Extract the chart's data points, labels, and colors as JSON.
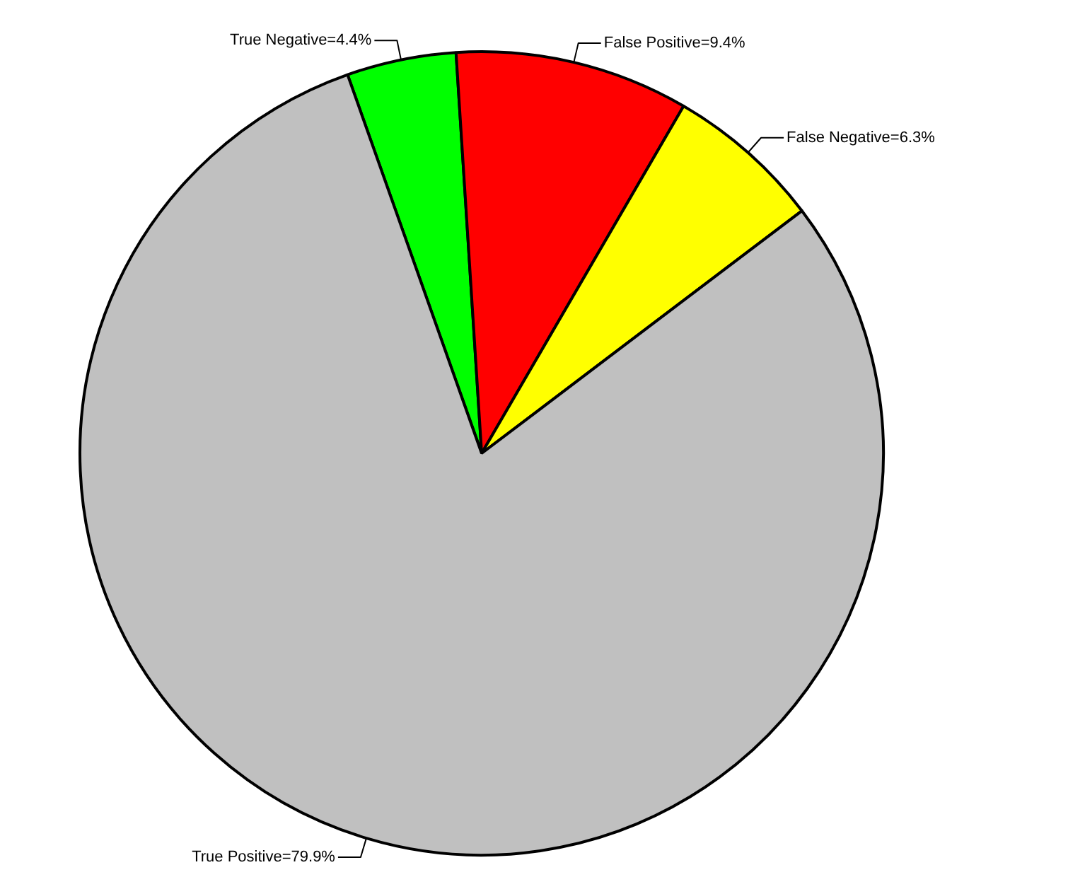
{
  "chart_data": {
    "type": "pie",
    "categories": [
      "True Negative=4.4%",
      "False Positive=9.4%",
      "False Negative=6.3%",
      "True Positive=79.9%"
    ],
    "values": [
      4.4,
      9.4,
      6.3,
      79.9
    ],
    "colors": [
      "#00ff00",
      "#ff0000",
      "#ffff00",
      "#c0c0c0"
    ]
  }
}
